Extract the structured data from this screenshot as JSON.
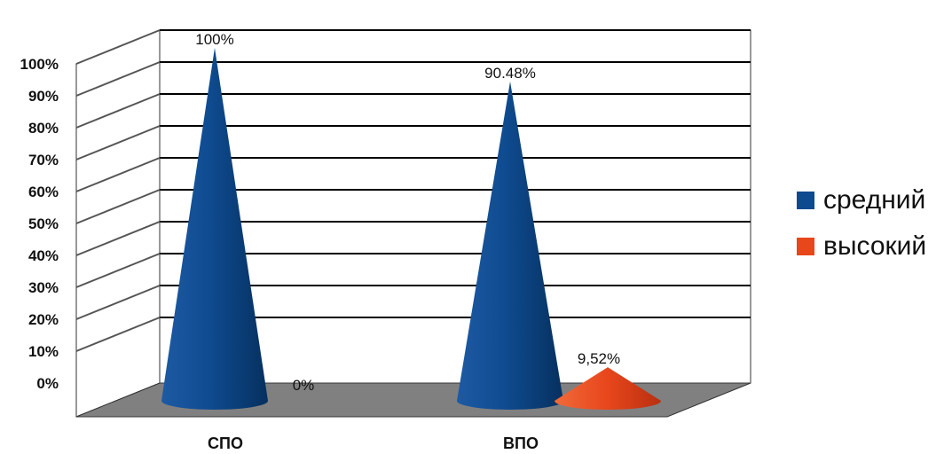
{
  "chart_data": {
    "type": "bar",
    "style": "3d-cone",
    "categories": [
      "СПО",
      "ВПО"
    ],
    "series": [
      {
        "name": "средний",
        "values": [
          100,
          90.48
        ],
        "labels": [
          "100%",
          "90.48%"
        ],
        "color": "#0e4a8e"
      },
      {
        "name": "высокий",
        "values": [
          0,
          9.52
        ],
        "labels": [
          "0%",
          "9,52%"
        ],
        "color": "#e8461b"
      }
    ],
    "ylim": [
      0,
      100
    ],
    "yticks": [
      "0%",
      "10%",
      "20%",
      "30%",
      "40%",
      "50%",
      "60%",
      "70%",
      "80%",
      "90%",
      "100%"
    ],
    "grid": true,
    "legend": "right",
    "colors": {
      "wall": "#ffffff",
      "floor": "#808080",
      "gridline": "#000000"
    }
  }
}
